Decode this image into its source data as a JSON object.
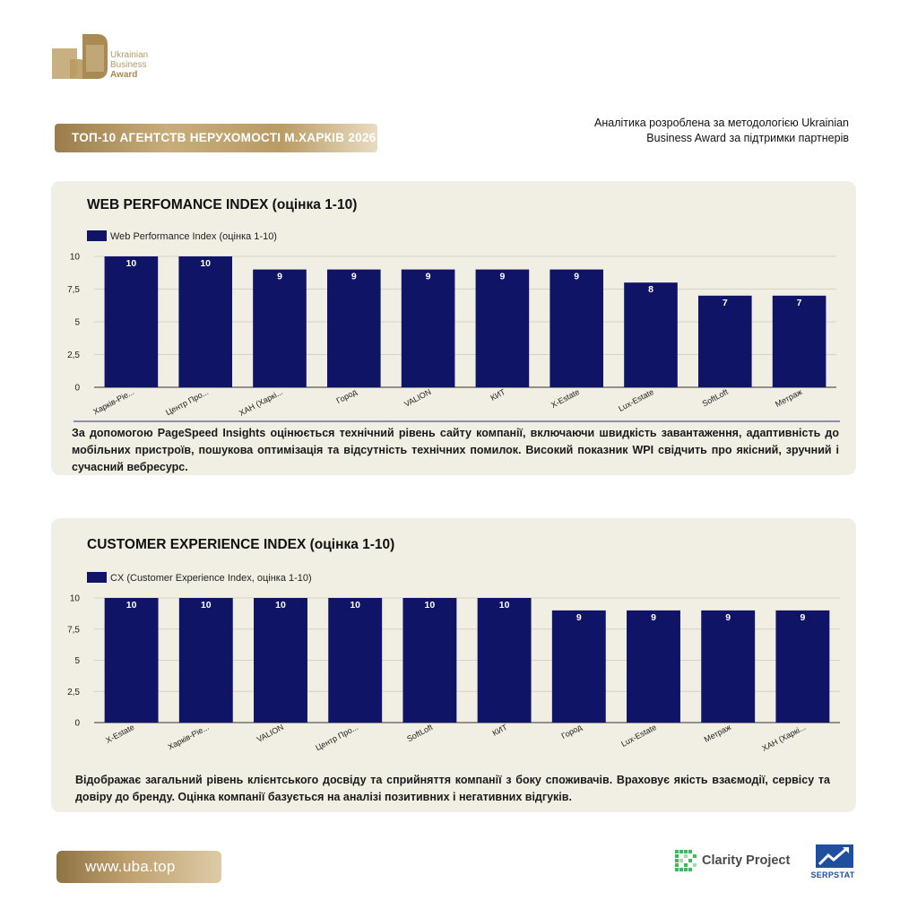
{
  "header": {
    "logo_lines": [
      "Ukrainian",
      "Business",
      "Award"
    ],
    "title": "ТОП-10 АГЕНТСТВ НЕРУХОМОСТІ М.ХАРКІВ 2026",
    "note_line1": "Аналітика розроблена за методологією Ukrainian",
    "note_line2": "Business Award за підтримки партнерів"
  },
  "sections": [
    {
      "title": "WEB PERFOMANCE INDEX (оцінка 1-10)",
      "description": "За допомогою PageSpeed Insights оцінюється технічний рівень сайту компанії, включаючи швидкість завантаження, адаптивність до мобільних пристроїв, пошукова оптимізація та відсутність технічних помилок. Високий показник WPI свідчить про якісний, зручний і сучасний вебресурс."
    },
    {
      "title": "CUSTOMER EXPERIENCE INDEX (оцінка 1-10)",
      "description": "Відображає загальний рівень клієнтського досвіду та сприйняття компанії з боку споживачів. Враховує якість взаємодії, сервісу та довіру до бренду. Оцінка компанії базується на аналізі позитивних і негативних відгуків."
    }
  ],
  "chart_data": [
    {
      "type": "bar",
      "legend_position": "top-left",
      "grid": true,
      "categories": [
        "Харків-Ріе...",
        "Центр Про...",
        "ХАН (Харкі...",
        "Город",
        "VALION",
        "КИТ",
        "X-Estate",
        "Lux-Estate",
        "SoftLoft",
        "Метраж"
      ],
      "series": [
        {
          "name": "Web Performance Index (оцінка 1-10)",
          "values": [
            10,
            10,
            9,
            9,
            9,
            9,
            9,
            8,
            7,
            7
          ]
        }
      ],
      "ylim": [
        0,
        10
      ],
      "yticks": [
        "0",
        "2,5",
        "5",
        "7,5",
        "10"
      ],
      "ytick_values": [
        0,
        2.5,
        5,
        7.5,
        10
      ],
      "data_labels": true,
      "colors": {
        "bar": "#0f1466",
        "label": "#ffffff",
        "grid": "#d6d2c6"
      }
    },
    {
      "type": "bar",
      "legend_position": "top-left",
      "grid": true,
      "categories": [
        "X-Estate",
        "Харків-Ріе...",
        "VALION",
        "Центр Про...",
        "SoftLoft",
        "КИТ",
        "Город",
        "Lux-Estate",
        "Метраж",
        "ХАН (Харкі..."
      ],
      "series": [
        {
          "name": "CX (Customer Experience Index, оцінка 1-10)",
          "values": [
            10,
            10,
            10,
            10,
            10,
            10,
            9,
            9,
            9,
            9
          ]
        }
      ],
      "ylim": [
        0,
        10
      ],
      "yticks": [
        "0",
        "2,5",
        "5",
        "7,5",
        "10"
      ],
      "ytick_values": [
        0,
        2.5,
        5,
        7.5,
        10
      ],
      "data_labels": true,
      "colors": {
        "bar": "#0f1466",
        "label": "#ffffff",
        "grid": "#d6d2c6"
      }
    }
  ],
  "footer": {
    "url": "www.uba.top",
    "partner1": "Clarity Project",
    "partner2": "SERPSTAT",
    "partner1_icon": "clarity-grid-icon",
    "partner2_icon": "serpstat-chart-icon"
  },
  "colors": {
    "gold": "#b59a66",
    "panel": "#f1eee4",
    "navy": "#0f1466"
  }
}
